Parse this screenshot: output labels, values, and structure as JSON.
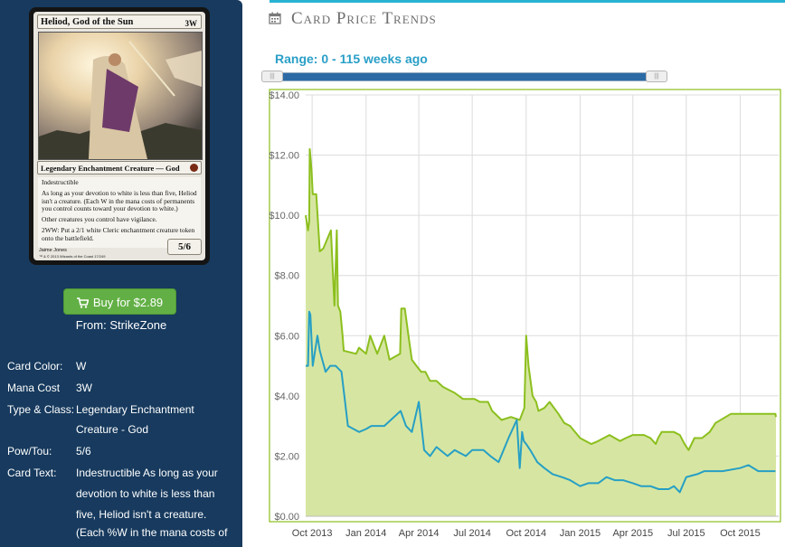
{
  "card": {
    "name": "Heliod, God of the Sun",
    "cost": "3W",
    "type_line": "Legendary Enchantment Creature — God",
    "rules_text": [
      "Indestructible",
      "As long as your devotion to white is less than five, Heliod isn't a creature. (Each W in the mana costs of permanents you control counts toward your devotion to white.)",
      "Other creatures you control have vigilance.",
      "2WW: Put a 2/1 white Cleric enchantment creature token onto the battlefield."
    ],
    "power_toughness": "5/6",
    "artist": "Jaime Jones",
    "copyright": "™ & © 2013 Wizards of the Coast 17/249"
  },
  "buy_button": "Buy for $2.89",
  "from_store": "From: StrikeZone",
  "details": [
    {
      "key": "Card Color:",
      "value": [
        "W"
      ]
    },
    {
      "key": "Mana Cost",
      "value": [
        "3W"
      ]
    },
    {
      "key": "Type & Class:",
      "value": [
        "Legendary Enchantment",
        "Creature - God"
      ]
    },
    {
      "key": "Pow/Tou:",
      "value": [
        "5/6"
      ]
    },
    {
      "key": "Card Text:",
      "value": [
        "Indestructible As long as your",
        "devotion to white is less than",
        "five, Heliod isn't a creature.",
        "(Each %W in the mana costs of"
      ]
    }
  ],
  "section_title": "Card Price Trends",
  "range_label": "Range: 0 - 115 weeks ago",
  "colors": {
    "sidebar": "#173a5e",
    "accent": "#2ab2d3",
    "green_line": "#8cbf1e",
    "green_fill": "#d6e6a2",
    "blue_line": "#279fc4",
    "buy": "#62b045"
  },
  "chart_data": {
    "type": "area",
    "title": "",
    "xlabel": "",
    "ylabel": "",
    "ylim": [
      0,
      14
    ],
    "y_ticks": [
      "$0.00",
      "$2.00",
      "$4.00",
      "$6.00",
      "$8.00",
      "$10.00",
      "$12.00",
      "$14.00"
    ],
    "x_ticks": [
      {
        "label": "Oct 2013",
        "date": "2013-10-01"
      },
      {
        "label": "Jan 2014",
        "date": "2014-01-01"
      },
      {
        "label": "Apr 2014",
        "date": "2014-04-01"
      },
      {
        "label": "Jul 2014",
        "date": "2014-07-01"
      },
      {
        "label": "Oct 2014",
        "date": "2014-10-01"
      },
      {
        "label": "Jan 2015",
        "date": "2015-01-01"
      },
      {
        "label": "Apr 2015",
        "date": "2015-04-01"
      },
      {
        "label": "Jul 2015",
        "date": "2015-07-01"
      },
      {
        "label": "Oct 2015",
        "date": "2015-10-01"
      }
    ],
    "xlim": [
      "2013-09-20",
      "2015-12-01"
    ],
    "grid": true,
    "series": [
      {
        "key": "green",
        "x": [
          "2013-09-20",
          "2013-09-24",
          "2013-09-26",
          "2013-09-27",
          "2013-09-30",
          "2013-10-02",
          "2013-10-08",
          "2013-10-14",
          "2013-10-20",
          "2013-11-02",
          "2013-11-08",
          "2013-11-12",
          "2013-11-14",
          "2013-11-18",
          "2013-11-22",
          "2013-11-24",
          "2013-12-15",
          "2013-12-20",
          "2014-01-01",
          "2014-01-08",
          "2014-01-20",
          "2014-02-01",
          "2014-02-10",
          "2014-02-28",
          "2014-03-02",
          "2014-03-08",
          "2014-03-15",
          "2014-03-20",
          "2014-03-28",
          "2014-04-05",
          "2014-04-12",
          "2014-04-20",
          "2014-05-01",
          "2014-05-12",
          "2014-06-01",
          "2014-06-15",
          "2014-07-05",
          "2014-07-14",
          "2014-07-28",
          "2014-08-04",
          "2014-08-20",
          "2014-09-05",
          "2014-09-20",
          "2014-09-28",
          "2014-10-01",
          "2014-10-05",
          "2014-10-12",
          "2014-10-18",
          "2014-10-22",
          "2014-11-01",
          "2014-11-10",
          "2014-11-25",
          "2014-12-05",
          "2014-12-15",
          "2015-01-01",
          "2015-01-20",
          "2015-02-01",
          "2015-02-20",
          "2015-03-10",
          "2015-03-20",
          "2015-04-01",
          "2015-04-20",
          "2015-05-01",
          "2015-05-10",
          "2015-05-14",
          "2015-05-20",
          "2015-06-10",
          "2015-06-20",
          "2015-06-28",
          "2015-07-05",
          "2015-07-15",
          "2015-07-28",
          "2015-08-10",
          "2015-08-20",
          "2015-09-15",
          "2015-10-15",
          "2015-11-15",
          "2015-11-30",
          "2015-12-01"
        ],
        "y": [
          10.0,
          9.5,
          9.8,
          12.2,
          11.5,
          10.7,
          10.7,
          8.8,
          8.9,
          9.5,
          7.0,
          9.5,
          7.0,
          6.8,
          6.0,
          5.5,
          5.4,
          5.6,
          5.4,
          6.0,
          5.4,
          6.0,
          5.2,
          5.4,
          6.9,
          6.9,
          5.9,
          5.2,
          5.0,
          4.8,
          4.8,
          4.5,
          4.5,
          4.3,
          4.1,
          3.9,
          3.9,
          3.8,
          3.8,
          3.5,
          3.2,
          3.3,
          3.2,
          3.6,
          6.0,
          5.0,
          4.0,
          3.8,
          3.5,
          3.6,
          3.8,
          3.4,
          3.1,
          3.0,
          2.6,
          2.4,
          2.5,
          2.7,
          2.5,
          2.6,
          2.7,
          2.7,
          2.6,
          2.4,
          2.6,
          2.8,
          2.8,
          2.7,
          2.4,
          2.2,
          2.6,
          2.6,
          2.8,
          3.1,
          3.4,
          3.4,
          3.4,
          3.4,
          3.3
        ]
      },
      {
        "key": "blue",
        "x": [
          "2013-09-20",
          "2013-09-24",
          "2013-09-26",
          "2013-09-28",
          "2013-10-02",
          "2013-10-10",
          "2013-10-14",
          "2013-10-24",
          "2013-11-01",
          "2013-11-10",
          "2013-11-20",
          "2013-12-01",
          "2013-12-20",
          "2014-01-01",
          "2014-01-10",
          "2014-02-01",
          "2014-03-01",
          "2014-03-10",
          "2014-03-20",
          "2014-04-01",
          "2014-04-10",
          "2014-04-20",
          "2014-05-01",
          "2014-05-20",
          "2014-06-01",
          "2014-06-20",
          "2014-07-01",
          "2014-07-20",
          "2014-08-01",
          "2014-08-15",
          "2014-09-01",
          "2014-09-15",
          "2014-09-20",
          "2014-09-24",
          "2014-09-27",
          "2014-10-01",
          "2014-10-08",
          "2014-10-20",
          "2014-11-01",
          "2014-11-15",
          "2014-12-01",
          "2014-12-15",
          "2015-01-01",
          "2015-01-15",
          "2015-02-01",
          "2015-02-15",
          "2015-03-01",
          "2015-03-15",
          "2015-04-01",
          "2015-04-15",
          "2015-05-01",
          "2015-05-15",
          "2015-06-01",
          "2015-06-10",
          "2015-06-20",
          "2015-07-01",
          "2015-07-20",
          "2015-08-01",
          "2015-09-01",
          "2015-10-01",
          "2015-10-15",
          "2015-11-01",
          "2015-11-30"
        ],
        "y": [
          5.0,
          5.0,
          6.8,
          6.7,
          5.0,
          6.0,
          5.5,
          4.8,
          5.0,
          5.0,
          4.8,
          3.0,
          2.8,
          2.9,
          3.0,
          3.0,
          3.5,
          3.0,
          2.8,
          3.8,
          2.2,
          2.0,
          2.3,
          2.0,
          2.2,
          2.0,
          2.2,
          2.2,
          2.0,
          1.8,
          2.6,
          3.2,
          1.6,
          2.8,
          2.5,
          2.4,
          2.2,
          1.8,
          1.6,
          1.4,
          1.3,
          1.2,
          1.0,
          1.1,
          1.1,
          1.3,
          1.2,
          1.2,
          1.1,
          1.0,
          1.0,
          0.9,
          0.9,
          1.0,
          0.8,
          1.3,
          1.4,
          1.5,
          1.5,
          1.6,
          1.7,
          1.5,
          1.5
        ]
      }
    ]
  }
}
